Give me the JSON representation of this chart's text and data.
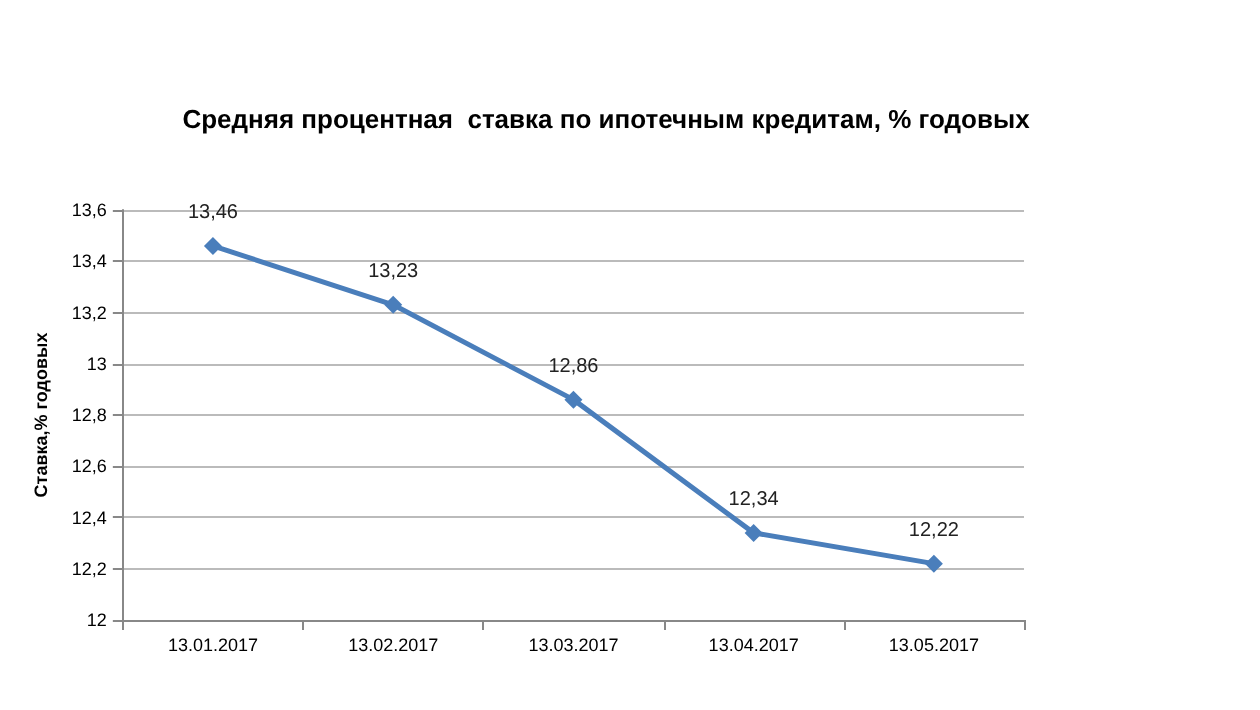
{
  "chart_data": {
    "type": "line",
    "title": "Средняя процентная  ставка по ипотечным кредитам, % годовых",
    "ylabel": "Ставка,% годовых",
    "categories": [
      "13.01.2017",
      "13.02.2017",
      "13.03.2017",
      "13.04.2017",
      "13.05.2017"
    ],
    "series": [
      {
        "color": "#4a7ebb",
        "values": [
          13.46,
          13.23,
          12.86,
          12.34,
          12.22
        ],
        "value_labels": [
          "13,46",
          "13,23",
          "12,86",
          "12,34",
          "12,22"
        ]
      }
    ],
    "ylim": [
      12,
      13.6
    ],
    "yticks": [
      {
        "value": 12,
        "label": "12"
      },
      {
        "value": 12.2,
        "label": "12,2"
      },
      {
        "value": 12.4,
        "label": "12,4"
      },
      {
        "value": 12.6,
        "label": "12,6"
      },
      {
        "value": 12.8,
        "label": "12,8"
      },
      {
        "value": 13,
        "label": "13"
      },
      {
        "value": 13.2,
        "label": "13,2"
      },
      {
        "value": 13.4,
        "label": "13,4"
      },
      {
        "value": 13.6,
        "label": "13,6"
      }
    ],
    "grid": "y",
    "marker": "diamond",
    "line_style": "solid"
  }
}
